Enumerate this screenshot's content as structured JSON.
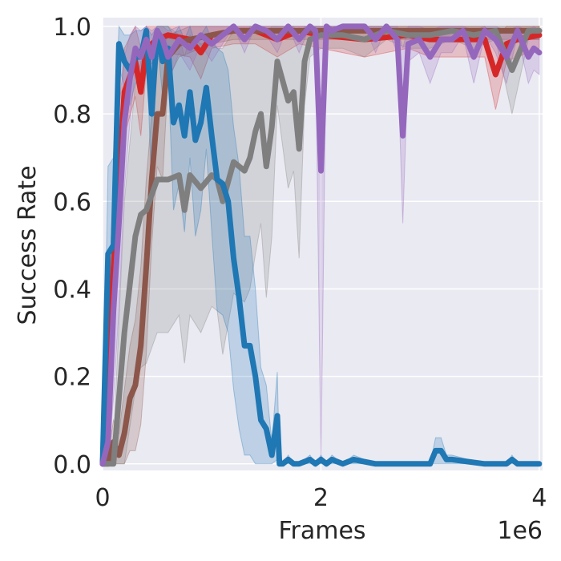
{
  "chart_data": {
    "type": "line",
    "xlabel": "Frames",
    "ylabel": "Success Rate",
    "x_offset_label": "1e6",
    "xlim": [
      0,
      4.03
    ],
    "ylim": [
      -0.015,
      1.02
    ],
    "xticks": [
      0,
      2,
      4
    ],
    "xtick_labels": [
      "0",
      "2",
      "4"
    ],
    "yticks": [
      0.0,
      0.2,
      0.4,
      0.6,
      0.8,
      1.0
    ],
    "ytick_labels": [
      "0.0",
      "0.2",
      "0.4",
      "0.6",
      "0.8",
      "1.0"
    ],
    "grid": true,
    "colors": {
      "background": "#eaeaf2",
      "grid": "#ffffff",
      "text": "#262626"
    },
    "series": [
      {
        "color": "#d62728",
        "x": [
          0,
          0.1,
          0.2,
          0.3,
          0.35,
          0.4,
          0.5,
          0.6,
          0.8,
          0.9,
          1.0,
          1.2,
          1.4,
          1.6,
          1.8,
          2.0,
          2.4,
          2.8,
          3.0,
          3.5,
          3.6,
          3.7,
          3.8,
          4.0
        ],
        "y": [
          0,
          0.45,
          0.85,
          0.92,
          0.85,
          0.95,
          0.97,
          0.98,
          0.97,
          0.94,
          0.98,
          0.99,
          0.99,
          0.97,
          0.99,
          0.98,
          0.97,
          0.98,
          0.97,
          0.97,
          0.89,
          0.96,
          0.97,
          0.98
        ],
        "band": [
          0,
          0.2,
          0.1,
          0.08,
          0.1,
          0.05,
          0.04,
          0.04,
          0.04,
          0.06,
          0.03,
          0.03,
          0.03,
          0.04,
          0.03,
          0.03,
          0.04,
          0.03,
          0.04,
          0.04,
          0.08,
          0.04,
          0.04,
          0.03
        ]
      },
      {
        "color": "#8c564b",
        "x": [
          0,
          0.05,
          0.1,
          0.15,
          0.2,
          0.25,
          0.3,
          0.35,
          0.4,
          0.45,
          0.5,
          0.55,
          0.6,
          0.7,
          0.8,
          1.0,
          1.2,
          1.5,
          2.0,
          2.5,
          3.0,
          3.5,
          4.0
        ],
        "y": [
          0,
          0.0,
          0.05,
          0.02,
          0.07,
          0.15,
          0.18,
          0.27,
          0.45,
          0.65,
          0.8,
          0.8,
          0.93,
          0.96,
          0.97,
          0.98,
          0.99,
          0.99,
          0.99,
          0.99,
          0.99,
          0.99,
          0.99
        ],
        "band": [
          0,
          0.02,
          0.05,
          0.05,
          0.1,
          0.12,
          0.15,
          0.18,
          0.2,
          0.15,
          0.12,
          0.15,
          0.05,
          0.03,
          0.03,
          0.02,
          0.02,
          0.02,
          0.02,
          0.02,
          0.02,
          0.02,
          0.02
        ]
      },
      {
        "color": "#7f7f7f",
        "x": [
          0,
          0.1,
          0.2,
          0.3,
          0.35,
          0.4,
          0.5,
          0.6,
          0.7,
          0.75,
          0.8,
          0.9,
          1.0,
          1.05,
          1.1,
          1.2,
          1.3,
          1.35,
          1.4,
          1.45,
          1.5,
          1.55,
          1.6,
          1.7,
          1.75,
          1.8,
          1.85,
          1.9,
          2.0,
          2.2,
          2.4,
          2.6,
          2.8,
          3.0,
          3.2,
          3.4,
          3.6,
          3.75,
          3.9,
          4.0
        ],
        "y": [
          0,
          0.0,
          0.3,
          0.52,
          0.57,
          0.58,
          0.65,
          0.65,
          0.66,
          0.58,
          0.66,
          0.63,
          0.66,
          0.65,
          0.6,
          0.69,
          0.67,
          0.7,
          0.76,
          0.8,
          0.68,
          0.77,
          0.92,
          0.83,
          0.85,
          0.72,
          0.92,
          0.97,
          0.98,
          0.98,
          0.97,
          0.99,
          0.98,
          0.98,
          0.99,
          0.98,
          0.99,
          0.9,
          0.99,
          0.99
        ],
        "band": [
          0,
          0.05,
          0.3,
          0.35,
          0.35,
          0.35,
          0.35,
          0.35,
          0.32,
          0.35,
          0.32,
          0.33,
          0.3,
          0.3,
          0.35,
          0.3,
          0.3,
          0.3,
          0.28,
          0.25,
          0.3,
          0.25,
          0.1,
          0.2,
          0.18,
          0.25,
          0.1,
          0.04,
          0.03,
          0.03,
          0.04,
          0.02,
          0.03,
          0.03,
          0.02,
          0.03,
          0.02,
          0.1,
          0.02,
          0.02
        ]
      },
      {
        "color": "#1f77b4",
        "x": [
          0,
          0.05,
          0.1,
          0.15,
          0.2,
          0.25,
          0.3,
          0.35,
          0.4,
          0.45,
          0.5,
          0.55,
          0.6,
          0.65,
          0.7,
          0.75,
          0.8,
          0.85,
          0.9,
          0.95,
          1.0,
          1.05,
          1.1,
          1.15,
          1.2,
          1.25,
          1.3,
          1.35,
          1.4,
          1.45,
          1.5,
          1.55,
          1.6,
          1.62,
          1.65,
          1.7,
          1.75,
          1.8,
          1.9,
          1.95,
          2.0,
          2.05,
          2.1,
          2.2,
          2.3,
          2.5,
          2.8,
          3.0,
          3.05,
          3.1,
          3.15,
          3.2,
          3.5,
          3.7,
          3.75,
          3.8,
          4.0
        ],
        "y": [
          0,
          0.48,
          0.5,
          0.96,
          0.92,
          0.9,
          0.93,
          0.93,
          0.99,
          0.8,
          0.99,
          0.92,
          0.95,
          0.78,
          0.82,
          0.75,
          0.85,
          0.74,
          0.78,
          0.86,
          0.75,
          0.65,
          0.64,
          0.6,
          0.47,
          0.38,
          0.27,
          0.27,
          0.2,
          0.1,
          0.08,
          0.02,
          0.11,
          0.0,
          0.0,
          0.01,
          0.0,
          0.0,
          0.01,
          0.0,
          0.01,
          0.0,
          0.01,
          0.0,
          0.01,
          0.0,
          0.0,
          0.0,
          0.03,
          0.03,
          0.01,
          0.01,
          0.0,
          0.0,
          0.01,
          0.0,
          0.0
        ],
        "band": [
          0,
          0.2,
          0.2,
          0.05,
          0.06,
          0.08,
          0.06,
          0.06,
          0.02,
          0.18,
          0.02,
          0.08,
          0.05,
          0.2,
          0.18,
          0.22,
          0.15,
          0.22,
          0.2,
          0.14,
          0.22,
          0.3,
          0.3,
          0.3,
          0.3,
          0.3,
          0.25,
          0.25,
          0.2,
          0.12,
          0.1,
          0.03,
          0.1,
          0.0,
          0.0,
          0.01,
          0.0,
          0.0,
          0.01,
          0.0,
          0.01,
          0.0,
          0.01,
          0.0,
          0.01,
          0.0,
          0.0,
          0.0,
          0.03,
          0.03,
          0.01,
          0.01,
          0.0,
          0.0,
          0.01,
          0.0,
          0.0
        ]
      },
      {
        "color": "#9467bd",
        "x": [
          0,
          0.05,
          0.1,
          0.15,
          0.2,
          0.25,
          0.3,
          0.35,
          0.4,
          0.45,
          0.5,
          0.55,
          0.6,
          0.7,
          0.8,
          0.9,
          1.0,
          1.2,
          1.3,
          1.4,
          1.5,
          1.6,
          1.7,
          1.8,
          1.9,
          1.95,
          2.0,
          2.05,
          2.1,
          2.2,
          2.4,
          2.5,
          2.6,
          2.7,
          2.75,
          2.8,
          2.9,
          3.0,
          3.1,
          3.2,
          3.3,
          3.4,
          3.5,
          3.6,
          3.7,
          3.8,
          3.9,
          3.95,
          4.0
        ],
        "y": [
          0,
          0.05,
          0.35,
          0.55,
          0.78,
          0.88,
          0.95,
          0.93,
          0.97,
          0.93,
          0.99,
          0.97,
          0.93,
          0.97,
          0.95,
          0.98,
          0.96,
          1.0,
          0.97,
          1.0,
          0.99,
          0.97,
          1.0,
          0.97,
          1.0,
          0.99,
          0.67,
          1.0,
          0.99,
          1.0,
          1.0,
          0.97,
          1.0,
          0.97,
          0.75,
          0.96,
          0.97,
          0.93,
          0.97,
          0.97,
          0.99,
          0.93,
          0.99,
          0.97,
          0.93,
          0.99,
          0.93,
          0.95,
          0.94
        ],
        "band": [
          0,
          0.05,
          0.2,
          0.2,
          0.15,
          0.1,
          0.05,
          0.06,
          0.03,
          0.06,
          0.02,
          0.03,
          0.06,
          0.03,
          0.05,
          0.02,
          0.04,
          0.0,
          0.03,
          0.0,
          0.01,
          0.03,
          0.0,
          0.03,
          0.0,
          0.01,
          0.67,
          0.0,
          0.01,
          0.0,
          0.0,
          0.03,
          0.0,
          0.03,
          0.2,
          0.04,
          0.03,
          0.06,
          0.03,
          0.03,
          0.01,
          0.06,
          0.01,
          0.03,
          0.06,
          0.01,
          0.06,
          0.05,
          0.05
        ]
      }
    ]
  }
}
